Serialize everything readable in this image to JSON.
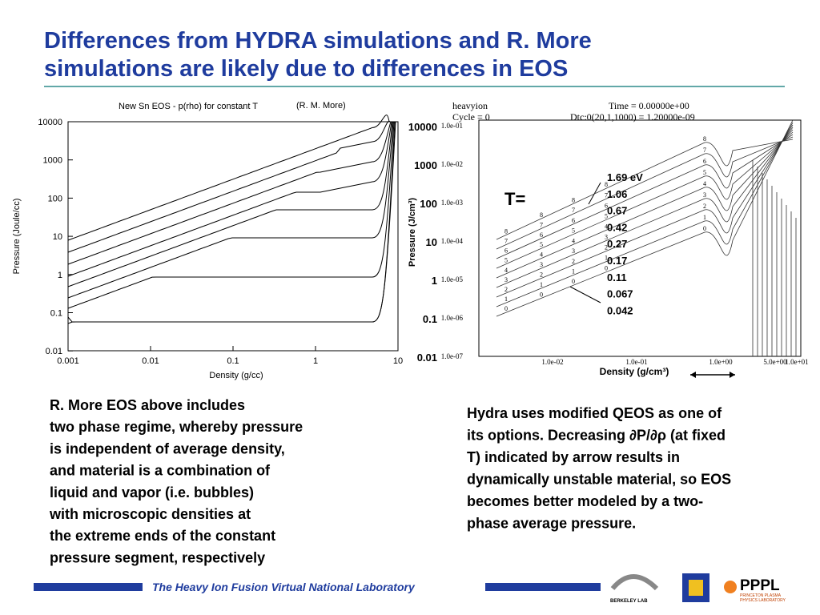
{
  "title": [
    "Differences from HYDRA simulations and R. More",
    "simulations are likely due to differences in EOS"
  ],
  "left_plot": {
    "title": "New Sn EOS - p(rho) for constant T",
    "credit": "(R. M. More)",
    "y_label": "Pressure (Joule/cc)",
    "x_label": "Density (g/cc)",
    "y_ticks": [
      "10000",
      "1000",
      "100",
      "10",
      "1",
      "0.1",
      "0.01"
    ],
    "x_ticks": [
      "0.001",
      "0.01",
      "0.1",
      "1",
      "10"
    ]
  },
  "right_plot": {
    "header": [
      "heavyion",
      "Cycle = 0"
    ],
    "time": "Time = 0.00000e+00",
    "dtc": "Dtc:0(20,1,1000) = 1.20000e-09",
    "y_ticks": [
      "1.0e-01",
      "1.0e-02",
      "1.0e-03",
      "1.0e-04",
      "1.0e-05",
      "1.0e-06",
      "1.0e-07"
    ],
    "y_ticks_overlay": [
      "10000",
      "1000",
      "100",
      "10",
      "1",
      "0.1",
      "0.01"
    ],
    "x_ticks": [
      "1.0e-02",
      "1.0e-01",
      "1.0e+00",
      "5.0e+00",
      "1.0e+01"
    ],
    "y_label": "Pressure (J/cm³)",
    "x_label": "Density (g/cm³)",
    "t_label": "T=",
    "t_values": [
      "1.69 eV",
      "1.06",
      "0.67",
      "0.42",
      "0.27",
      "0.17",
      "0.11",
      "0.067",
      "0.042"
    ],
    "curve_labels": [
      "0",
      "1",
      "2",
      "3",
      "4",
      "5",
      "6",
      "7",
      "8"
    ]
  },
  "left_text": [
    "R. More EOS above includes",
    "two phase regime, whereby pressure",
    "is independent of average density,",
    "and material is a combination of",
    "liquid and vapor (i.e. bubbles)",
    "with microscopic densities at",
    "the extreme ends of the constant",
    "pressure segment, respectively"
  ],
  "right_text": [
    "Hydra uses modified QEOS as one of",
    "its options.  Decreasing ∂P/∂ρ (at fixed",
    "T) indicated by arrow results in",
    "dynamically unstable material, so EOS",
    "becomes better modeled by a two-",
    "phase average pressure."
  ],
  "footer": {
    "lab": "The Heavy Ion Fusion Virtual National Laboratory",
    "berkeley": "BERKELEY LAB",
    "pppl": "PPPL",
    "pppl_full": [
      "PRINCETON PLASMA",
      "PHYSICS LABORATORY"
    ]
  }
}
